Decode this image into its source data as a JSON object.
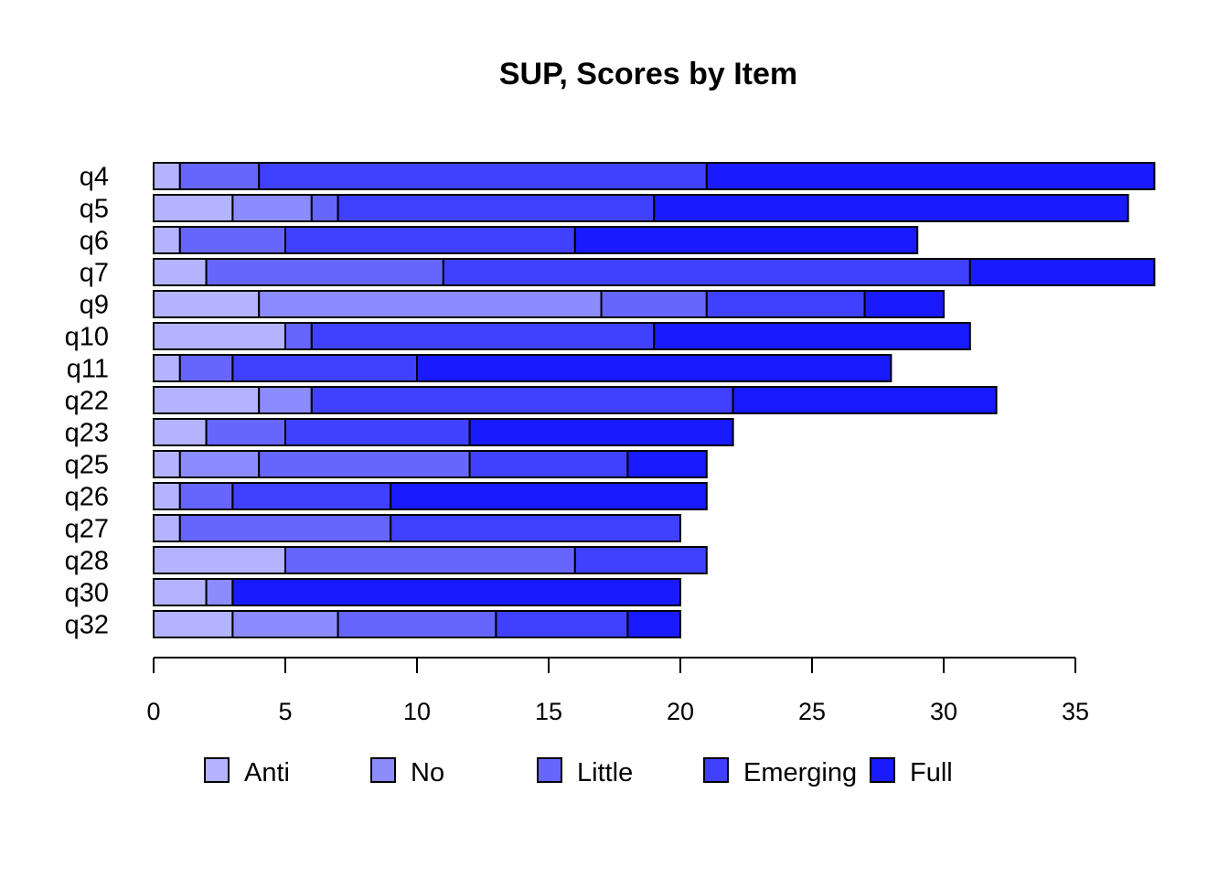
{
  "chart_data": {
    "type": "bar",
    "orientation": "horizontal",
    "stacked": true,
    "title": "SUP, Scores by Item",
    "xlabel": "",
    "ylabel": "",
    "xlim": [
      0,
      38
    ],
    "xticks": [
      0,
      5,
      10,
      15,
      20,
      25,
      30,
      35
    ],
    "grid": false,
    "legend_position": "bottom",
    "categories": [
      "q4",
      "q5",
      "q6",
      "q7",
      "q9",
      "q10",
      "q11",
      "q22",
      "q23",
      "q25",
      "q26",
      "q27",
      "q28",
      "q30",
      "q32"
    ],
    "series": [
      {
        "name": "Anti",
        "color": "#B3B3FF",
        "values": [
          1,
          3,
          1,
          2,
          4,
          5,
          1,
          4,
          2,
          1,
          1,
          1,
          5,
          2,
          3
        ]
      },
      {
        "name": "No",
        "color": "#8C8CFF",
        "values": [
          0,
          3,
          0,
          0,
          13,
          0,
          0,
          2,
          0,
          3,
          0,
          0,
          0,
          1,
          4
        ]
      },
      {
        "name": "Little",
        "color": "#6666FF",
        "values": [
          3,
          1,
          4,
          9,
          4,
          1,
          2,
          0,
          3,
          8,
          2,
          8,
          11,
          0,
          6
        ]
      },
      {
        "name": "Emerging",
        "color": "#4040FF",
        "values": [
          17,
          12,
          11,
          20,
          6,
          13,
          7,
          16,
          7,
          6,
          6,
          11,
          5,
          0,
          5
        ]
      },
      {
        "name": "Full",
        "color": "#1A1AFF",
        "values": [
          17,
          18,
          13,
          7,
          3,
          12,
          18,
          10,
          10,
          3,
          12,
          0,
          0,
          17,
          2
        ]
      }
    ]
  }
}
